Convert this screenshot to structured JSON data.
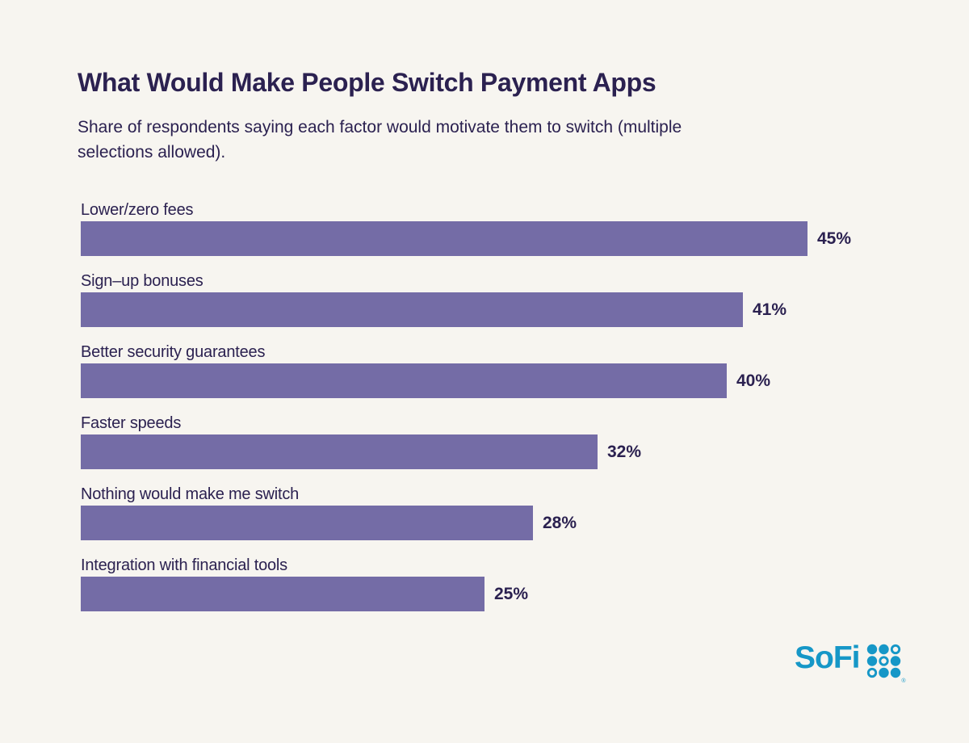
{
  "page": {
    "background_color": "#F7F5F0",
    "text_color": "#2B2150"
  },
  "header": {
    "title": "What Would Make People Switch Payment Apps",
    "subtitle_line1": "Share of respondents saying each factor would motivate them to switch (multiple",
    "subtitle_line2": "selections allowed)."
  },
  "chart_data": {
    "type": "bar",
    "orientation": "horizontal",
    "title": "What Would Make People Switch Payment Apps",
    "subtitle": "Share of respondents saying each factor would motivate them to switch (multiple selections allowed).",
    "categories": [
      "Lower/zero fees",
      "Sign–up bonuses",
      "Better security guarantees",
      "Faster speeds",
      "Nothing would make me switch",
      "Integration with financial tools"
    ],
    "values": [
      45,
      41,
      40,
      32,
      28,
      25
    ],
    "value_labels": [
      "45%",
      "41%",
      "40%",
      "32%",
      "28%",
      "25%"
    ],
    "unit": "%",
    "xlabel": "",
    "ylabel": "",
    "xlim": [
      0,
      50
    ],
    "grid": false,
    "legend": false,
    "bar_color": "#746CA6",
    "label_color": "#2B2150"
  },
  "branding": {
    "logo_text": "SoFi",
    "logo_color": "#1697C7",
    "registered_mark": "®",
    "dots": [
      [
        "filled",
        "filled",
        "outline"
      ],
      [
        "filled",
        "outline",
        "filled"
      ],
      [
        "outline",
        "filled",
        "filled"
      ]
    ]
  }
}
